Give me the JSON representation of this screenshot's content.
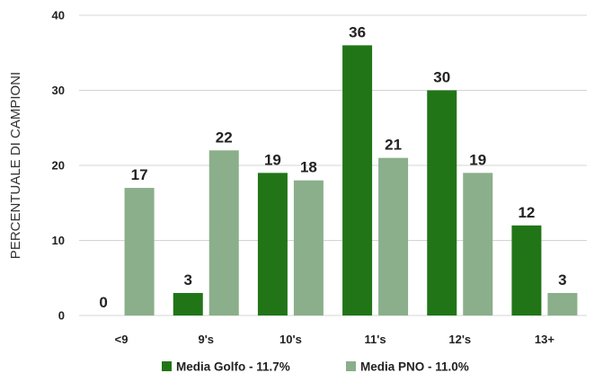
{
  "chart_data": {
    "type": "bar",
    "title": "",
    "xlabel": "",
    "ylabel": "PERCENTUALE DI CAMPIONI",
    "ylim": [
      0,
      40
    ],
    "yticks": [
      0,
      10,
      20,
      30,
      40
    ],
    "grid": true,
    "legend_position": "bottom",
    "categories": [
      "<9",
      "9's",
      "10's",
      "11's",
      "12's",
      "13+"
    ],
    "series": [
      {
        "name": "Media Golfo - 11.7%",
        "color": "#217517",
        "values": [
          0,
          3,
          19,
          36,
          30,
          12
        ]
      },
      {
        "name": "Media PNO - 11.0%",
        "color": "#8aaf8a",
        "values": [
          17,
          22,
          18,
          21,
          19,
          3
        ]
      }
    ]
  }
}
